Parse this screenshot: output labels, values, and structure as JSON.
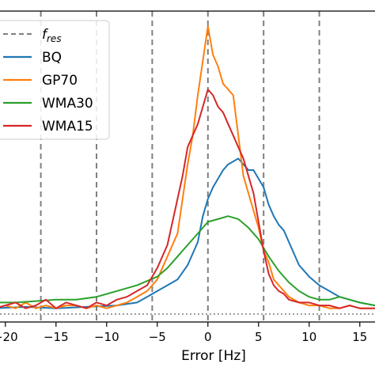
{
  "chart_data": {
    "type": "line",
    "xlabel": "Error [Hz]",
    "ylabel": "",
    "xlim": [
      -21,
      16.5
    ],
    "ylim": [
      0,
      1.0
    ],
    "grid": false,
    "legend_placement": "upper-left",
    "x_ticks": [
      -20,
      -15,
      -10,
      -5,
      0,
      5,
      10,
      15
    ],
    "x_tick_labels": [
      "−20",
      "−15",
      "−10",
      "−5",
      "0",
      "5",
      "10",
      "15"
    ],
    "vlines": {
      "name": "f_res",
      "label_base": "f",
      "label_sub": "res",
      "color": "#7f7f7f",
      "x": [
        -16.5,
        -11,
        -5.5,
        0,
        5.5,
        11
      ]
    },
    "baseline": {
      "y": 0.0,
      "color": "#7f7f7f"
    },
    "series": [
      {
        "name": "BQ",
        "color": "#1f77b4",
        "x": [
          -21,
          -18,
          -15,
          -12,
          -9,
          -7,
          -6,
          -5,
          -4,
          -3,
          -2,
          -1,
          -0.5,
          0,
          0.5,
          1,
          1.5,
          2,
          2.5,
          3,
          3.5,
          4,
          4.5,
          5,
          5.5,
          6,
          6.5,
          7,
          7.5,
          8,
          8.5,
          9,
          10,
          11,
          12,
          13,
          14,
          15,
          16.5
        ],
        "y": [
          0.02,
          0.025,
          0.02,
          0.025,
          0.03,
          0.04,
          0.06,
          0.08,
          0.1,
          0.12,
          0.17,
          0.25,
          0.34,
          0.4,
          0.44,
          0.47,
          0.5,
          0.52,
          0.53,
          0.54,
          0.52,
          0.5,
          0.5,
          0.47,
          0.44,
          0.38,
          0.34,
          0.31,
          0.29,
          0.25,
          0.21,
          0.17,
          0.13,
          0.1,
          0.08,
          0.06,
          0.05,
          0.04,
          0.03
        ]
      },
      {
        "name": "GP70",
        "color": "#ff7f0e",
        "x": [
          -21,
          -20,
          -19,
          -18,
          -17,
          -16,
          -15,
          -14,
          -13,
          -12,
          -11,
          -10,
          -9,
          -8,
          -7,
          -6,
          -5,
          -4,
          -3,
          -2.5,
          -2,
          -1.5,
          -1,
          -0.5,
          0,
          0.5,
          1,
          1.5,
          2,
          2.5,
          3,
          3.5,
          4,
          4.5,
          5,
          5.5,
          6,
          6.5,
          7,
          7.5,
          8,
          9,
          10,
          11,
          12,
          13,
          14,
          15,
          16.5
        ],
        "y": [
          0.02,
          0.03,
          0.02,
          0.04,
          0.02,
          0.03,
          0.02,
          0.03,
          0.03,
          0.02,
          0.03,
          0.02,
          0.03,
          0.04,
          0.06,
          0.08,
          0.12,
          0.2,
          0.28,
          0.4,
          0.52,
          0.62,
          0.76,
          0.88,
          1.0,
          0.9,
          0.86,
          0.8,
          0.78,
          0.76,
          0.62,
          0.48,
          0.42,
          0.36,
          0.3,
          0.22,
          0.18,
          0.12,
          0.1,
          0.08,
          0.06,
          0.04,
          0.03,
          0.03,
          0.02,
          0.02,
          0.03,
          0.02,
          0.02
        ]
      },
      {
        "name": "WMA30",
        "color": "#2ca02c",
        "x": [
          -21,
          -19,
          -17,
          -15,
          -13,
          -11,
          -9,
          -7,
          -5,
          -4,
          -3,
          -2,
          -1,
          0,
          1,
          2,
          3,
          4,
          5,
          6,
          7,
          8,
          9,
          10,
          11,
          12,
          13,
          14,
          15,
          16.5
        ],
        "y": [
          0.04,
          0.04,
          0.045,
          0.05,
          0.05,
          0.06,
          0.08,
          0.1,
          0.13,
          0.16,
          0.2,
          0.24,
          0.28,
          0.32,
          0.33,
          0.34,
          0.33,
          0.3,
          0.26,
          0.2,
          0.15,
          0.11,
          0.08,
          0.06,
          0.05,
          0.05,
          0.06,
          0.05,
          0.04,
          0.03
        ]
      },
      {
        "name": "WMA15",
        "color": "#d62728",
        "x": [
          -21,
          -20,
          -19,
          -18,
          -17,
          -16,
          -15,
          -14,
          -13,
          -12,
          -11,
          -10,
          -9,
          -8,
          -7,
          -6,
          -5,
          -4,
          -3,
          -2.5,
          -2,
          -1.5,
          -1,
          -0.5,
          0,
          0.5,
          1,
          1.5,
          2,
          2.5,
          3,
          3.5,
          4,
          4.5,
          5,
          5.5,
          6,
          6.5,
          7,
          7.5,
          8,
          9,
          10,
          11,
          12,
          13,
          14,
          15,
          16.5
        ],
        "y": [
          0.02,
          0.03,
          0.04,
          0.02,
          0.03,
          0.05,
          0.02,
          0.04,
          0.03,
          0.02,
          0.04,
          0.03,
          0.05,
          0.06,
          0.08,
          0.1,
          0.16,
          0.24,
          0.4,
          0.48,
          0.58,
          0.62,
          0.66,
          0.72,
          0.78,
          0.76,
          0.72,
          0.7,
          0.66,
          0.62,
          0.58,
          0.54,
          0.48,
          0.42,
          0.32,
          0.22,
          0.14,
          0.1,
          0.08,
          0.07,
          0.05,
          0.04,
          0.04,
          0.03,
          0.03,
          0.02,
          0.03,
          0.02,
          0.02
        ]
      }
    ]
  }
}
